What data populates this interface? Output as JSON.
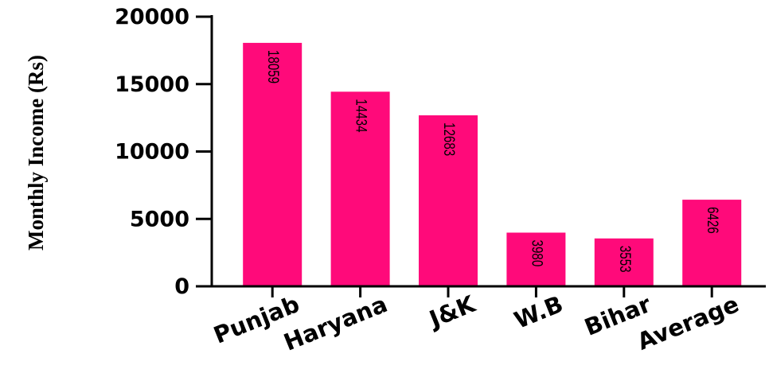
{
  "chart_data": {
    "type": "bar",
    "title": "",
    "xlabel": "",
    "ylabel": "Monthly Income (Rs)",
    "categories": [
      "Punjab",
      "Haryana",
      "J&K",
      "W.B",
      "Bihar",
      "Average"
    ],
    "values": [
      18059,
      14434,
      12683,
      3980,
      3553,
      6426
    ],
    "data_labels": [
      "18059",
      "14434",
      "12683",
      "3980",
      "3553",
      "6426"
    ],
    "yticks": [
      0,
      5000,
      10000,
      15000,
      20000
    ],
    "ytick_labels": [
      "0",
      "5000",
      "10000",
      "15000",
      "20000"
    ],
    "ylim": [
      0,
      20000
    ],
    "grid": false,
    "legend": "none",
    "colors": {
      "bar": "#FF0A7A",
      "axis": "#000000",
      "text": "#000000"
    }
  }
}
